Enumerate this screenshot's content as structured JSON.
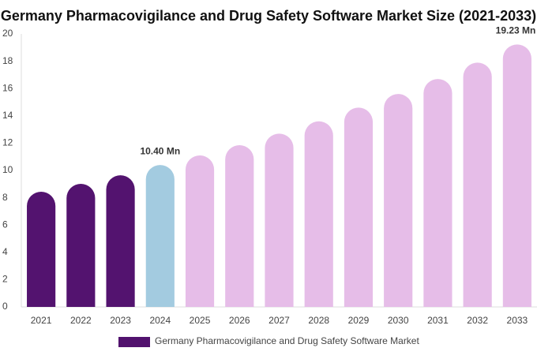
{
  "chart_data": {
    "type": "bar",
    "title": "Germany Pharmacovigilance and Drug Safety Software Market Size (2021-2033)",
    "categories": [
      "2021",
      "2022",
      "2023",
      "2024",
      "2025",
      "2026",
      "2027",
      "2028",
      "2029",
      "2030",
      "2031",
      "2032",
      "2033"
    ],
    "series": [
      {
        "name": "Germany Pharmacovigilance and Drug Safety Software Market",
        "color": "#52126e",
        "values": [
          8.44,
          9.02,
          9.65,
          10.4,
          11.1,
          11.85,
          12.7,
          13.6,
          14.6,
          15.6,
          16.7,
          17.9,
          19.23
        ],
        "value_labels": [
          null,
          null,
          null,
          "10.40 Mn",
          null,
          null,
          null,
          null,
          null,
          null,
          null,
          null,
          "19.23 Mn"
        ],
        "colors": [
          "#53136f",
          "#53136f",
          "#53136f",
          "#a3cbe0",
          "#e6bde8",
          "#e6bde8",
          "#e6bde8",
          "#e6bde8",
          "#e6bde8",
          "#e6bde8",
          "#e6bde8",
          "#e6bde8",
          "#e6bde8"
        ]
      }
    ],
    "ylim": [
      0,
      20
    ],
    "yticks": [
      0,
      2,
      4,
      6,
      8,
      10,
      12,
      14,
      16,
      18,
      20
    ],
    "grid": false,
    "legend": "bottom"
  }
}
